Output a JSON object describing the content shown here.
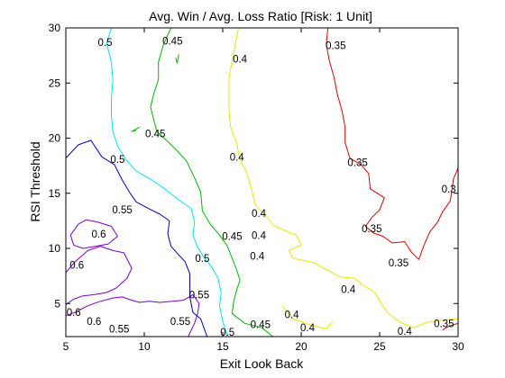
{
  "chart_data": {
    "type": "contour",
    "title": "Avg. Win / Avg. Loss Ratio [Risk: 1 Unit]",
    "xlabel": "Exit Look Back",
    "ylabel": "RSI Threshold",
    "xlim": [
      5,
      30
    ],
    "ylim": [
      2,
      30
    ],
    "xticks": [
      5,
      10,
      15,
      20,
      25,
      30
    ],
    "yticks": [
      5,
      10,
      15,
      20,
      25,
      30
    ],
    "grid": false,
    "levels": [
      {
        "value": 0.6,
        "color": "#7a00cc",
        "paths": [
          [
            [
              5,
              7.8
            ],
            [
              5.6,
              8.8
            ],
            [
              6.4,
              9.8
            ],
            [
              7.2,
              10.2
            ],
            [
              8,
              9.8
            ],
            [
              8.7,
              9.6
            ],
            [
              9.2,
              8.2
            ],
            [
              8.9,
              7.3
            ],
            [
              8.2,
              6.4
            ],
            [
              7.6,
              6
            ],
            [
              6.8,
              5.8
            ],
            [
              6.1,
              5.7
            ],
            [
              5.5,
              5.4
            ],
            [
              5,
              4.9
            ]
          ],
          [
            [
              5,
              3.9
            ],
            [
              5.6,
              4.2
            ],
            [
              6.4,
              4.8
            ],
            [
              7.2,
              5.2
            ],
            [
              8,
              5.5
            ],
            [
              8.6,
              5.6
            ],
            [
              9.2,
              5.3
            ],
            [
              9.7,
              5.1
            ],
            [
              10.3,
              5.2
            ],
            [
              11,
              5.1
            ],
            [
              11.8,
              5.2
            ],
            [
              12.5,
              5.3
            ],
            [
              13.1,
              5.8
            ],
            [
              13.5,
              5
            ],
            [
              13.4,
              4.1
            ],
            [
              13.2,
              3.2
            ],
            [
              12.8,
              2
            ]
          ],
          [
            [
              5.3,
              11.2
            ],
            [
              5.8,
              12.2
            ],
            [
              6.3,
              12.6
            ],
            [
              7,
              12.4
            ],
            [
              7.9,
              12
            ],
            [
              8.3,
              11.1
            ],
            [
              7.7,
              10.4
            ],
            [
              6.9,
              10.2
            ],
            [
              6.1,
              10
            ],
            [
              5.5,
              10.3
            ],
            [
              5.3,
              11.2
            ]
          ]
        ]
      },
      {
        "value": 0.55,
        "color": "#0000c8",
        "paths": [
          [
            [
              5,
              18.2
            ],
            [
              5.8,
              19.4
            ],
            [
              6.6,
              19.8
            ],
            [
              7.3,
              18.3
            ],
            [
              8.1,
              17.6
            ],
            [
              8.6,
              16.2
            ],
            [
              9.1,
              15
            ],
            [
              9.5,
              14.2
            ],
            [
              10.3,
              13.6
            ],
            [
              11,
              13.1
            ],
            [
              11.6,
              12.5
            ],
            [
              11.5,
              11.3
            ],
            [
              11.7,
              10.2
            ],
            [
              12.2,
              9.4
            ],
            [
              12.6,
              8.8
            ],
            [
              12.9,
              7.7
            ],
            [
              12.9,
              6.8
            ],
            [
              12.9,
              5.6
            ],
            [
              13.1,
              4.2
            ],
            [
              13.6,
              3.6
            ],
            [
              14,
              2
            ]
          ]
        ]
      },
      {
        "value": 0.5,
        "color": "#00e5ee",
        "paths": [
          [
            [
              7.9,
              30
            ],
            [
              7.6,
              28.6
            ],
            [
              7.9,
              26.9
            ],
            [
              8,
              25.3
            ],
            [
              7.9,
              23.6
            ],
            [
              7.9,
              22.1
            ],
            [
              8,
              20.6
            ],
            [
              8.3,
              19.3
            ],
            [
              8.8,
              18.1
            ],
            [
              9.5,
              17
            ],
            [
              10.5,
              16.2
            ],
            [
              11.3,
              15.4
            ],
            [
              12.2,
              14.4
            ],
            [
              13,
              13.6
            ],
            [
              13.2,
              12.4
            ],
            [
              13.1,
              11.2
            ],
            [
              13.4,
              10.1
            ],
            [
              13.8,
              9.2
            ],
            [
              14.3,
              8.3
            ],
            [
              14.7,
              7.3
            ],
            [
              14.9,
              6
            ],
            [
              14.8,
              4.8
            ],
            [
              15,
              3.4
            ],
            [
              15.3,
              2
            ]
          ]
        ]
      },
      {
        "value": 0.45,
        "color": "#00b800",
        "paths": [
          [
            [
              11.7,
              30
            ],
            [
              11.2,
              28.4
            ],
            [
              10.9,
              26.9
            ],
            [
              10.9,
              25.3
            ],
            [
              10.6,
              24
            ],
            [
              10.4,
              22.8
            ],
            [
              10.6,
              21.7
            ],
            [
              10.8,
              20.6
            ],
            [
              11.5,
              19.7
            ],
            [
              12.2,
              18.7
            ],
            [
              12.7,
              17.9
            ],
            [
              13.2,
              16.4
            ],
            [
              13.6,
              15.1
            ],
            [
              13.7,
              13.4
            ],
            [
              14.2,
              12.2
            ],
            [
              14.8,
              11.2
            ],
            [
              15.3,
              10.2
            ],
            [
              15.6,
              9.1
            ],
            [
              15.9,
              8
            ],
            [
              16.1,
              7.1
            ],
            [
              15.9,
              6.3
            ],
            [
              15.7,
              5.2
            ],
            [
              15.6,
              4.1
            ],
            [
              16.4,
              3.2
            ],
            [
              17.5,
              2.8
            ],
            [
              18.2,
              2
            ]
          ],
          [
            [
              12,
              27.3
            ],
            [
              12.1,
              26.8
            ],
            [
              12.2,
              27.6
            ]
          ],
          [
            [
              9.5,
              20.7
            ],
            [
              9.2,
              20.6
            ],
            [
              9.7,
              21
            ]
          ]
        ]
      },
      {
        "value": 0.4,
        "color": "#e8e800",
        "paths": [
          [
            [
              16,
              30
            ],
            [
              15.8,
              28.5
            ],
            [
              15.6,
              27
            ],
            [
              15.4,
              25.5
            ],
            [
              15.4,
              24
            ],
            [
              15.4,
              22.5
            ],
            [
              15.5,
              21
            ],
            [
              15.9,
              19.5
            ],
            [
              16.1,
              18
            ],
            [
              16.5,
              17
            ],
            [
              16.7,
              16
            ],
            [
              16.9,
              15
            ],
            [
              17.1,
              13.9
            ],
            [
              17.8,
              12.9
            ],
            [
              18.2,
              12.1
            ],
            [
              19,
              11.6
            ],
            [
              19.7,
              11.2
            ],
            [
              20,
              10.3
            ],
            [
              19.2,
              9.8
            ],
            [
              19.5,
              9.1
            ],
            [
              20.8,
              8.7
            ],
            [
              21.7,
              8
            ],
            [
              22.5,
              7.4
            ],
            [
              23.4,
              7.3
            ],
            [
              24,
              6.6
            ],
            [
              24.7,
              6
            ],
            [
              25.1,
              5
            ],
            [
              25.5,
              4.2
            ],
            [
              26.3,
              3.3
            ],
            [
              27.2,
              2.8
            ],
            [
              28,
              3.3
            ],
            [
              29,
              3.5
            ],
            [
              30,
              3.6
            ]
          ],
          [
            [
              18.8,
              4.8
            ],
            [
              19.5,
              3.6
            ],
            [
              20.3,
              3.2
            ],
            [
              21,
              2.9
            ],
            [
              21.6,
              2.7
            ],
            [
              22,
              3.3
            ]
          ]
        ]
      },
      {
        "value": 0.35,
        "color": "#dd0000",
        "paths": [
          [
            [
              21.7,
              30
            ],
            [
              21.6,
              28.5
            ],
            [
              21.8,
              27
            ],
            [
              22.1,
              25.5
            ],
            [
              22.3,
              24
            ],
            [
              22.6,
              22.5
            ],
            [
              22.8,
              21
            ],
            [
              22.8,
              19.6
            ],
            [
              23.1,
              18.2
            ],
            [
              23.8,
              17.6
            ],
            [
              24.3,
              16.8
            ],
            [
              24.4,
              15.4
            ],
            [
              25.3,
              14.6
            ],
            [
              25,
              13.5
            ],
            [
              24.5,
              12.8
            ],
            [
              24.1,
              12
            ],
            [
              24.6,
              11.4
            ],
            [
              25.2,
              11.1
            ],
            [
              25.8,
              10.5
            ],
            [
              26.6,
              10.6
            ],
            [
              27,
              9.7
            ],
            [
              27.5,
              9
            ],
            [
              27.8,
              10.2
            ],
            [
              28.2,
              11.5
            ],
            [
              28.7,
              12.4
            ],
            [
              29,
              13.3
            ],
            [
              29.5,
              14.3
            ],
            [
              29.6,
              15.2
            ],
            [
              29.7,
              16.3
            ],
            [
              30,
              17.3
            ]
          ],
          [
            [
              29,
              2.6
            ],
            [
              29.5,
              3
            ],
            [
              30,
              3.2
            ]
          ]
        ]
      }
    ],
    "annotations": [
      {
        "text": "0.5",
        "x": 7.5,
        "y": 28.7
      },
      {
        "text": "0.45",
        "x": 11.8,
        "y": 28.8
      },
      {
        "text": "0.35",
        "x": 22.2,
        "y": 28.4
      },
      {
        "text": "0.4",
        "x": 16.1,
        "y": 27.2
      },
      {
        "text": "0.45",
        "x": 10.7,
        "y": 20.4
      },
      {
        "text": "0.5",
        "x": 8.3,
        "y": 18.1
      },
      {
        "text": "0.4",
        "x": 15.9,
        "y": 18.3
      },
      {
        "text": "0.35",
        "x": 23.6,
        "y": 17.8
      },
      {
        "text": "0.3",
        "x": 29.4,
        "y": 15.4
      },
      {
        "text": "0.55",
        "x": 8.6,
        "y": 13.5
      },
      {
        "text": "0.4",
        "x": 17.3,
        "y": 13.2
      },
      {
        "text": "0.6",
        "x": 7.1,
        "y": 11.3
      },
      {
        "text": "0.45",
        "x": 15.6,
        "y": 11.1
      },
      {
        "text": "0.4",
        "x": 17.3,
        "y": 11.2
      },
      {
        "text": "0.35",
        "x": 24.5,
        "y": 11.8
      },
      {
        "text": "0.4",
        "x": 17.2,
        "y": 9.3
      },
      {
        "text": "0.5",
        "x": 13.7,
        "y": 9.1
      },
      {
        "text": "0.35",
        "x": 26.2,
        "y": 8.7
      },
      {
        "text": "0.6",
        "x": 5.7,
        "y": 8.5
      },
      {
        "text": "0.4",
        "x": 23,
        "y": 6.3
      },
      {
        "text": "0.55",
        "x": 13.5,
        "y": 5.8
      },
      {
        "text": "0.6",
        "x": 5.5,
        "y": 4.2
      },
      {
        "text": "0.4",
        "x": 19.4,
        "y": 4
      },
      {
        "text": "0.6",
        "x": 6.8,
        "y": 3.4
      },
      {
        "text": "0.55",
        "x": 12.3,
        "y": 3.4
      },
      {
        "text": "0.45",
        "x": 17.4,
        "y": 3.1
      },
      {
        "text": "0.35",
        "x": 29.1,
        "y": 3.2
      },
      {
        "text": "0.55",
        "x": 8.4,
        "y": 2.7
      },
      {
        "text": "0.4",
        "x": 20.4,
        "y": 2.8
      },
      {
        "text": "0.5",
        "x": 15.3,
        "y": 2.4
      },
      {
        "text": "0.4",
        "x": 26.6,
        "y": 2.5
      }
    ]
  }
}
